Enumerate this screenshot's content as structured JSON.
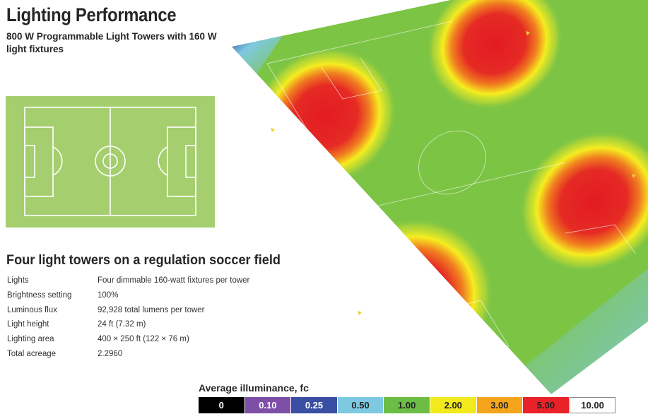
{
  "header": {
    "title": "Lighting Performance",
    "subtitle": "800 W Programmable Light Towers with 160 W light fixtures"
  },
  "section_title": "Four light towers on a regulation soccer field",
  "specs": [
    {
      "label": "Lights",
      "value": "Four dimmable 160-watt fixtures per tower"
    },
    {
      "label": "Brightness setting",
      "value": "100%"
    },
    {
      "label": "Luminous flux",
      "value": "92,928 total lumens per tower"
    },
    {
      "label": "Light height",
      "value": "24 ft (7.32 m)"
    },
    {
      "label": "Lighting area",
      "value": "400 × 250 ft (122 × 76 m)"
    },
    {
      "label": "Total acreage",
      "value": "2.2960"
    }
  ],
  "legend": {
    "title": "Average illuminance, fc",
    "items": [
      {
        "label": "0",
        "color": "#000000",
        "text_color": "#ffffff"
      },
      {
        "label": "0.10",
        "color": "#7d4fa6",
        "text_color": "#ffffff"
      },
      {
        "label": "0.25",
        "color": "#3a4fa3",
        "text_color": "#ffffff"
      },
      {
        "label": "0.50",
        "color": "#7ec9e2",
        "text_color": "#222222"
      },
      {
        "label": "1.00",
        "color": "#6cbd45",
        "text_color": "#222222"
      },
      {
        "label": "2.00",
        "color": "#f3ea1d",
        "text_color": "#222222"
      },
      {
        "label": "3.00",
        "color": "#f5a51c",
        "text_color": "#222222"
      },
      {
        "label": "5.00",
        "color": "#e9222a",
        "text_color": "#222222"
      },
      {
        "label": "10.00",
        "color": "#ffffff",
        "text_color": "#222222"
      }
    ]
  },
  "colors": {
    "field_green": "#a5cf6e",
    "heat_green": "#7cc444",
    "heat_red": "#e31b23",
    "heat_yellow": "#f6ed1f"
  }
}
